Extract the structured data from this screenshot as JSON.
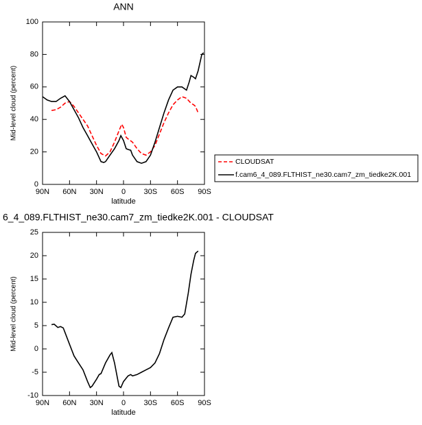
{
  "chart_data": [
    {
      "type": "line",
      "title": "ANN",
      "x_label": "latitude",
      "y_label": "Mid-level cloud (percent)",
      "xlim": [
        90,
        -90
      ],
      "xticks": [
        {
          "value": 90,
          "label": "90N"
        },
        {
          "value": 60,
          "label": "60N"
        },
        {
          "value": 30,
          "label": "30N"
        },
        {
          "value": 0,
          "label": "0"
        },
        {
          "value": -30,
          "label": "30S"
        },
        {
          "value": -60,
          "label": "60S"
        },
        {
          "value": -90,
          "label": "90S"
        }
      ],
      "ylim": [
        0,
        100
      ],
      "yticks": [
        0,
        20,
        40,
        60,
        80,
        100
      ],
      "legend": "outside-right",
      "series": [
        {
          "name": "CLOUDSAT",
          "color": "#ff0000",
          "line_style": "dashed",
          "x": [
            80,
            75,
            70,
            65,
            60,
            55,
            50,
            45,
            40,
            35,
            30,
            25,
            20,
            15,
            10,
            5,
            2,
            0,
            -3,
            -5,
            -10,
            -15,
            -20,
            -25,
            -30,
            -35,
            -40,
            -45,
            -50,
            -55,
            -60,
            -65,
            -70,
            -75,
            -78,
            -80,
            -83
          ],
          "values": [
            45.5,
            46,
            47.5,
            50,
            51,
            48,
            44,
            40,
            36,
            30,
            24,
            19,
            17.5,
            20,
            26,
            33,
            37,
            35,
            29,
            28,
            26,
            22,
            19,
            18,
            20,
            24,
            31,
            38,
            44,
            49,
            52,
            54,
            53,
            50,
            49,
            48,
            44
          ]
        },
        {
          "name": "f.cam6_4_089.FLTHIST_ne30.cam7_zm_tiedke2K.001",
          "color": "#000000",
          "line_style": "solid",
          "x": [
            90,
            85,
            80,
            75,
            70,
            65,
            60,
            55,
            50,
            45,
            40,
            35,
            30,
            25,
            22,
            20,
            15,
            10,
            5,
            3,
            0,
            -3,
            -5,
            -8,
            -10,
            -15,
            -20,
            -25,
            -30,
            -35,
            -40,
            -45,
            -50,
            -55,
            -60,
            -65,
            -70,
            -73,
            -75,
            -78,
            -80,
            -83,
            -87,
            -89
          ],
          "values": [
            54,
            52,
            51,
            51,
            53,
            54.5,
            51,
            46,
            41,
            35,
            30,
            25,
            20,
            14,
            13.5,
            14,
            18,
            22,
            27,
            30,
            27,
            22,
            21.5,
            21,
            18,
            14,
            13,
            14,
            18,
            26,
            35,
            44,
            52,
            58,
            60,
            60,
            58,
            63,
            67,
            66,
            65,
            70,
            80,
            81
          ]
        }
      ]
    },
    {
      "type": "line",
      "title": "6_4_089.FLTHIST_ne30.cam7_zm_tiedke2K.001 - CLOUDSAT",
      "x_label": "latitude",
      "y_label": "Mid-level cloud (percent)",
      "xlim": [
        90,
        -90
      ],
      "xticks": [
        {
          "value": 90,
          "label": "90N"
        },
        {
          "value": 60,
          "label": "60N"
        },
        {
          "value": 30,
          "label": "30N"
        },
        {
          "value": 0,
          "label": "0"
        },
        {
          "value": -30,
          "label": "30S"
        },
        {
          "value": -60,
          "label": "60S"
        },
        {
          "value": -90,
          "label": "90S"
        }
      ],
      "ylim": [
        -10,
        25
      ],
      "yticks": [
        -10,
        -5,
        0,
        5,
        10,
        15,
        20,
        25
      ],
      "series": [
        {
          "color": "#000000",
          "line_style": "solid",
          "x": [
            80,
            77,
            73,
            70,
            67,
            65,
            60,
            55,
            50,
            45,
            40,
            37,
            35,
            30,
            27,
            25,
            20,
            15,
            13,
            10,
            7,
            5,
            3,
            0,
            -5,
            -8,
            -10,
            -15,
            -20,
            -25,
            -30,
            -35,
            -40,
            -45,
            -50,
            -55,
            -60,
            -65,
            -68,
            -72,
            -75,
            -78,
            -80,
            -83
          ],
          "values": [
            5.2,
            5.3,
            4.6,
            4.8,
            4.5,
            3.5,
            1,
            -1.5,
            -3,
            -4.5,
            -7,
            -8.3,
            -8,
            -6.5,
            -5.5,
            -5.3,
            -3,
            -1.3,
            -0.8,
            -3,
            -6,
            -8,
            -8.3,
            -7,
            -5.8,
            -5.5,
            -5.8,
            -5.5,
            -5,
            -4.5,
            -4,
            -3,
            -1,
            2,
            4.5,
            6.8,
            7,
            6.8,
            7.5,
            12,
            16,
            19,
            20.5,
            21
          ]
        }
      ]
    }
  ]
}
